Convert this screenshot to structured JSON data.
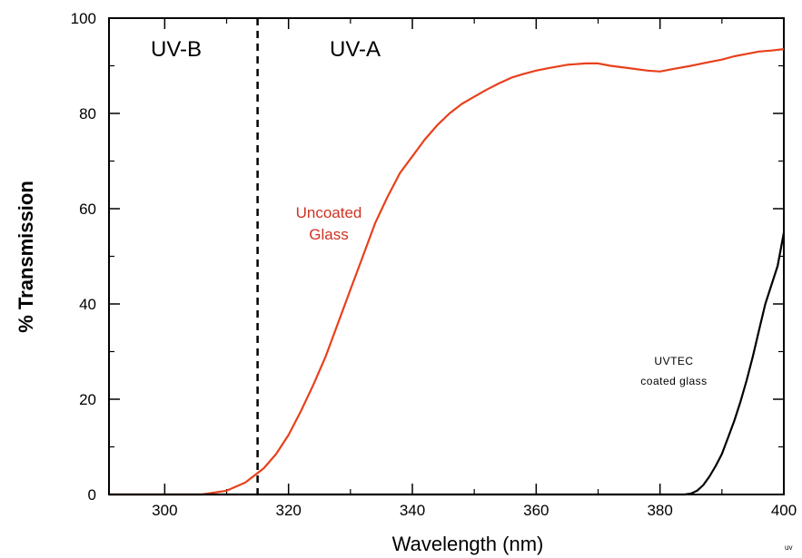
{
  "chart_data": {
    "type": "line",
    "xlabel": "Wavelength (nm)",
    "ylabel": "% Transmission",
    "xlim": [
      291,
      400
    ],
    "ylim": [
      0,
      100
    ],
    "xticks": [
      300,
      320,
      340,
      360,
      380,
      400
    ],
    "yticks": [
      0,
      20,
      40,
      60,
      80,
      100
    ],
    "grid": false,
    "regions": [
      {
        "label": "UV-B",
        "x": 300
      },
      {
        "label": "UV-A",
        "x": 321
      }
    ],
    "boundary_x": 315,
    "corner_note": "uv",
    "series": [
      {
        "name": "Uncoated Glass",
        "label_lines": [
          "Uncoated",
          "Glass"
        ],
        "color": "#e8401c",
        "x": [
          291,
          300,
          306,
          310,
          313,
          316,
          318,
          320,
          322,
          324,
          326,
          328,
          330,
          332,
          334,
          336,
          338,
          340,
          342,
          344,
          346,
          348,
          350,
          352,
          354,
          356,
          358,
          360,
          362,
          365,
          368,
          370,
          372,
          375,
          378,
          380,
          382,
          385,
          388,
          390,
          392,
          394,
          396,
          398,
          400
        ],
        "y": [
          0,
          0,
          0,
          0.8,
          2.5,
          5.5,
          8.5,
          12.5,
          17.5,
          23,
          29,
          36,
          43,
          50,
          57,
          62.5,
          67.5,
          71,
          74.5,
          77.5,
          80,
          82,
          83.5,
          85,
          86.3,
          87.5,
          88.3,
          89,
          89.5,
          90.2,
          90.5,
          90.5,
          90,
          89.5,
          89,
          88.8,
          89.3,
          90,
          90.8,
          91.3,
          92,
          92.5,
          93,
          93.2,
          93.5
        ]
      },
      {
        "name": "UVTEC coated glass",
        "label_lines": [
          "UVTEC",
          "coated glass"
        ],
        "color": "#000000",
        "x": [
          291,
          384,
          385,
          386,
          387,
          388,
          389,
          390,
          391,
          392,
          393,
          394,
          395,
          396,
          397,
          398,
          399,
          400
        ],
        "y": [
          0,
          0,
          0.2,
          0.8,
          2,
          3.8,
          6,
          8.5,
          12,
          15.5,
          19.5,
          24,
          29,
          34.5,
          40,
          44,
          48,
          55
        ]
      }
    ]
  }
}
